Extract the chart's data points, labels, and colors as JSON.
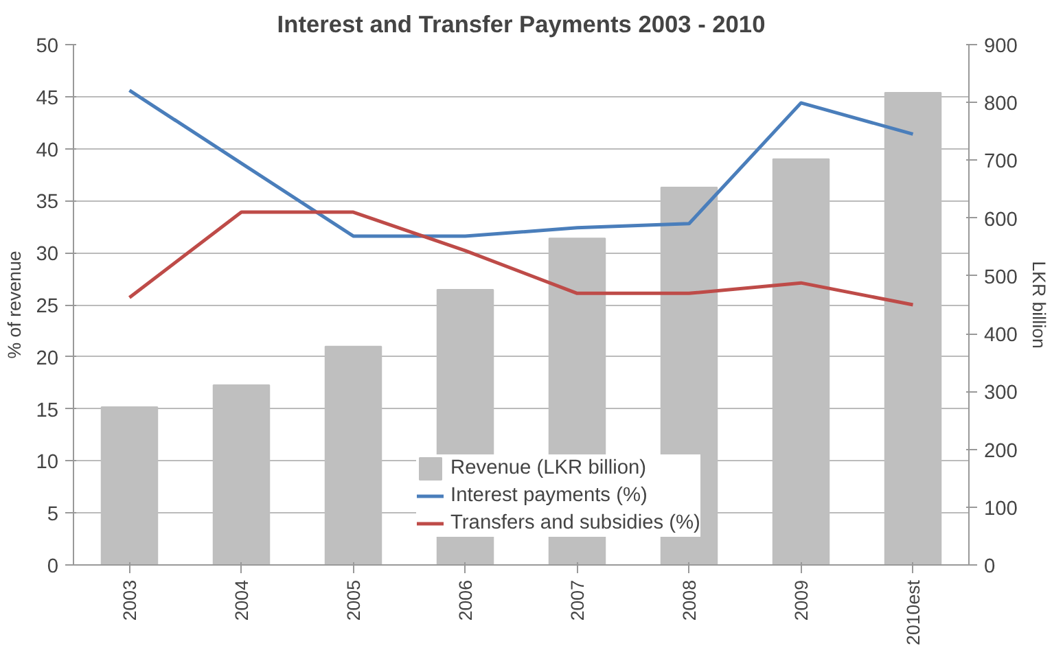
{
  "chart_data": {
    "type": "line",
    "title": "Interest and Transfer Payments 2003 - 2010",
    "ylabel": "% of revenue",
    "y2label": "LKR billion",
    "categories": [
      "2003",
      "2004",
      "2005",
      "2006",
      "2007",
      "2008",
      "2009",
      "2010est"
    ],
    "series": [
      {
        "name": "Revenue (LKR billion)",
        "type": "bar",
        "axis": "y2",
        "color": "#bfbfbf",
        "values": [
          273,
          311,
          378,
          476,
          565,
          653,
          702,
          817
        ]
      },
      {
        "name": "Interest payments (%)",
        "color": "#4a7ebb",
        "values": [
          45.6,
          38.6,
          31.6,
          31.6,
          32.4,
          32.8,
          44.4,
          41.4
        ]
      },
      {
        "name": "Transfers and subsidies (%)",
        "color": "#be4b48",
        "values": [
          25.7,
          33.9,
          33.9,
          30.2,
          26.1,
          26.1,
          27.1,
          25.0
        ]
      }
    ],
    "ylim": [
      0,
      50
    ],
    "yticks": [
      0,
      5,
      10,
      15,
      20,
      25,
      30,
      35,
      40,
      45,
      50
    ],
    "y2lim": [
      0,
      900
    ],
    "y2ticks": [
      0,
      100,
      200,
      300,
      400,
      500,
      600,
      700,
      800,
      900
    ],
    "grid": "y",
    "legend": "bottom",
    "marker": "none",
    "line_style": "solid"
  }
}
